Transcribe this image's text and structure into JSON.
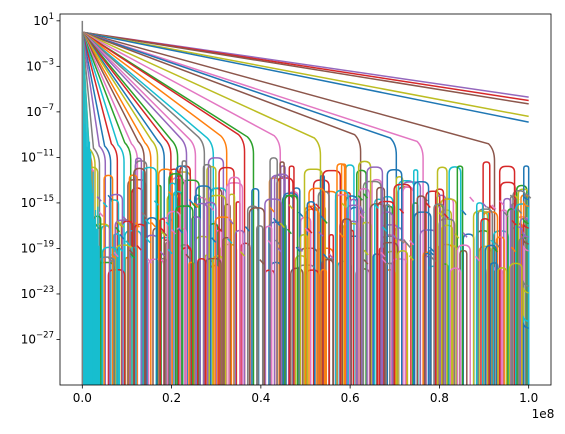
{
  "chart_data": {
    "type": "line",
    "title": "",
    "xlabel": "",
    "ylabel": "",
    "x_scale": "linear",
    "y_scale": "log",
    "xlim": [
      -5000000,
      105000000
    ],
    "ylim_log10": [
      -31,
      1.6
    ],
    "x_ticks": [
      0,
      20000000,
      40000000,
      60000000,
      80000000,
      100000000
    ],
    "x_tick_labels": [
      "0.0",
      "0.2",
      "0.4",
      "0.6",
      "0.8",
      "1.0"
    ],
    "x_offset_label": "1e8",
    "y_ticks_log10": [
      1,
      -3,
      -7,
      -11,
      -15,
      -19,
      -23,
      -27
    ],
    "y_tick_labels": [
      {
        "base": "10",
        "exp": "1"
      },
      {
        "base": "10",
        "exp": "−3"
      },
      {
        "base": "10",
        "exp": "−7"
      },
      {
        "base": "10",
        "exp": "−11"
      },
      {
        "base": "10",
        "exp": "−15"
      },
      {
        "base": "10",
        "exp": "−19"
      },
      {
        "base": "10",
        "exp": "−23"
      },
      {
        "base": "10",
        "exp": "−27"
      }
    ],
    "grid": false,
    "legend": "none",
    "start": {
      "x": 0,
      "y": 1
    },
    "straight_series": [
      {
        "color": "#9467bd",
        "end": {
          "x": 100000000,
          "log10y": -5.7
        }
      },
      {
        "color": "#d62728",
        "end": {
          "x": 100000000,
          "log10y": -6.0
        }
      },
      {
        "color": "#8c564b",
        "end": {
          "x": 100000000,
          "log10y": -6.3
        }
      },
      {
        "color": "#bcbd22",
        "end": {
          "x": 100000000,
          "log10y": -7.4
        }
      },
      {
        "color": "#1f77b4",
        "end": {
          "x": 100000000,
          "log10y": -7.9
        }
      }
    ],
    "dropping_series": [
      {
        "color": "#8c564b",
        "cutoff_x": 91000000,
        "log10y_at_cutoff": -9.8
      },
      {
        "color": "#e377c2",
        "cutoff_x": 75000000,
        "log10y_at_cutoff": -9.6
      },
      {
        "color": "#1f77b4",
        "cutoff_x": 69000000,
        "log10y_at_cutoff": -9.3
      },
      {
        "color": "#8c564b",
        "cutoff_x": 61000000,
        "log10y_at_cutoff": -9.0
      },
      {
        "color": "#bcbd22",
        "cutoff_x": 52000000,
        "log10y_at_cutoff": -9.3
      },
      {
        "color": "#e377c2",
        "cutoff_x": 43000000,
        "log10y_at_cutoff": -9.1
      },
      {
        "color": "#2ca02c",
        "cutoff_x": 37000000,
        "log10y_at_cutoff": -9.2
      },
      {
        "color": "#d62728",
        "cutoff_x": 35000000,
        "log10y_at_cutoff": -9.0
      },
      {
        "color": "#ff7f0e",
        "cutoff_x": 31000000,
        "log10y_at_cutoff": -9.1
      },
      {
        "color": "#17becf",
        "cutoff_x": 28000000,
        "log10y_at_cutoff": -9.3
      },
      {
        "color": "#7f7f7f",
        "cutoff_x": 26000000,
        "log10y_at_cutoff": -9.2
      },
      {
        "color": "#e377c2",
        "cutoff_x": 24000000,
        "log10y_at_cutoff": -9.4
      },
      {
        "color": "#9467bd",
        "cutoff_x": 22000000,
        "log10y_at_cutoff": -9.3
      },
      {
        "color": "#2ca02c",
        "cutoff_x": 20000000,
        "log10y_at_cutoff": -9.5
      },
      {
        "color": "#d62728",
        "cutoff_x": 18500000,
        "log10y_at_cutoff": -9.4
      },
      {
        "color": "#1f77b4",
        "cutoff_x": 17000000,
        "log10y_at_cutoff": -9.6
      },
      {
        "color": "#bcbd22",
        "cutoff_x": 15500000,
        "log10y_at_cutoff": -9.5
      },
      {
        "color": "#ff7f0e",
        "cutoff_x": 14000000,
        "log10y_at_cutoff": -9.7
      },
      {
        "color": "#8c564b",
        "cutoff_x": 12500000,
        "log10y_at_cutoff": -9.6
      },
      {
        "color": "#e377c2",
        "cutoff_x": 11000000,
        "log10y_at_cutoff": -9.8
      },
      {
        "color": "#2ca02c",
        "cutoff_x": 9500000,
        "log10y_at_cutoff": -9.7
      },
      {
        "color": "#17becf",
        "cutoff_x": 8000000,
        "log10y_at_cutoff": -9.9
      },
      {
        "color": "#d62728",
        "cutoff_x": 6500000,
        "log10y_at_cutoff": -9.8
      },
      {
        "color": "#1f77b4",
        "cutoff_x": 5000000,
        "log10y_at_cutoff": -10.0
      },
      {
        "color": "#9467bd",
        "cutoff_x": 3800000,
        "log10y_at_cutoff": -10.0
      },
      {
        "color": "#7f7f7f",
        "cutoff_x": 2500000,
        "log10y_at_cutoff": -10.2
      },
      {
        "color": "#bcbd22",
        "cutoff_x": 1500000,
        "log10y_at_cutoff": -10.2
      },
      {
        "color": "#ff7f0e",
        "cutoff_x": 800000,
        "log10y_at_cutoff": -10.3
      }
    ],
    "noise_floor": {
      "log10y_range": [
        -21,
        -11
      ],
      "palette": [
        "#1f77b4",
        "#ff7f0e",
        "#2ca02c",
        "#d62728",
        "#9467bd",
        "#8c564b",
        "#e377c2",
        "#7f7f7f",
        "#bcbd22",
        "#17becf"
      ]
    },
    "dense_fill": {
      "color": "#17becf",
      "x_range": [
        0,
        4000000
      ]
    }
  }
}
